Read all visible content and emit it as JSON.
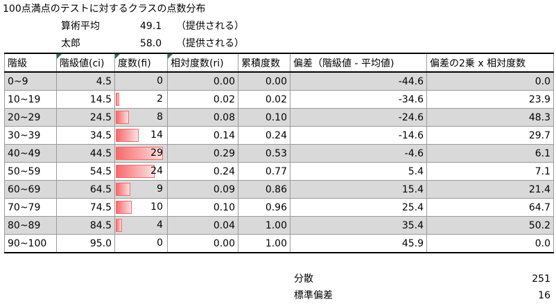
{
  "title": "100点満点のテストに対するクラスの点数分布",
  "info": [
    {
      "label": "算術平均",
      "value": "49.1",
      "note": "（提供される）"
    },
    {
      "label": "太郎",
      "value": "58.0",
      "note": "（提供される）"
    }
  ],
  "table": {
    "headers": [
      "階級",
      "階級値(ci)",
      "度数(fi)",
      "相対度数(ri)",
      "累積度数",
      "偏差（階級値 - 平均値)",
      "偏差の2乗 x 相対度数"
    ],
    "freq_max": 29,
    "rows": [
      {
        "cls": "0~9",
        "ci": "4.5",
        "fi": 0,
        "ri": "0.00",
        "cum": "0.00",
        "dev": "-44.6",
        "sq": "0.0"
      },
      {
        "cls": "10~19",
        "ci": "14.5",
        "fi": 2,
        "ri": "0.02",
        "cum": "0.02",
        "dev": "-34.6",
        "sq": "23.9"
      },
      {
        "cls": "20~29",
        "ci": "24.5",
        "fi": 8,
        "ri": "0.08",
        "cum": "0.10",
        "dev": "-24.6",
        "sq": "48.3"
      },
      {
        "cls": "30~39",
        "ci": "34.5",
        "fi": 14,
        "ri": "0.14",
        "cum": "0.24",
        "dev": "-14.6",
        "sq": "29.7"
      },
      {
        "cls": "40~49",
        "ci": "44.5",
        "fi": 29,
        "ri": "0.29",
        "cum": "0.53",
        "dev": "-4.6",
        "sq": "6.1"
      },
      {
        "cls": "50~59",
        "ci": "54.5",
        "fi": 24,
        "ri": "0.24",
        "cum": "0.77",
        "dev": "5.4",
        "sq": "7.1"
      },
      {
        "cls": "60~69",
        "ci": "64.5",
        "fi": 9,
        "ri": "0.09",
        "cum": "0.86",
        "dev": "15.4",
        "sq": "21.4"
      },
      {
        "cls": "70~79",
        "ci": "74.5",
        "fi": 10,
        "ri": "0.10",
        "cum": "0.96",
        "dev": "25.4",
        "sq": "64.7"
      },
      {
        "cls": "80~89",
        "ci": "84.5",
        "fi": 4,
        "ri": "0.04",
        "cum": "1.00",
        "dev": "35.4",
        "sq": "50.2"
      },
      {
        "cls": "90~100",
        "ci": "95.0",
        "fi": 0,
        "ri": "0.00",
        "cum": "1.00",
        "dev": "45.9",
        "sq": "0.0"
      }
    ]
  },
  "stats": [
    {
      "label": "分散",
      "value": "251"
    },
    {
      "label": "標準偏差",
      "value": "16"
    }
  ],
  "colors": {
    "databar": "#f8696b",
    "band": "#d9d9d9",
    "comment_marker": "#217346"
  }
}
